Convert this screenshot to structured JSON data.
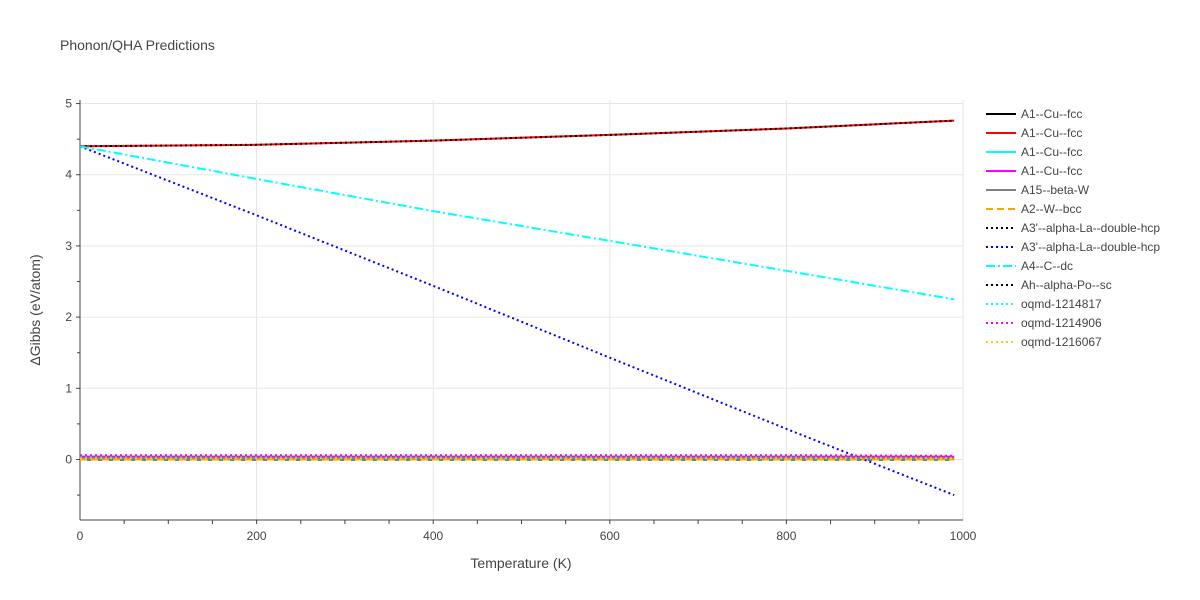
{
  "chart_data": {
    "type": "line",
    "title": "Phonon/QHA Predictions",
    "xlabel": "Temperature (K)",
    "ylabel": "ΔGibbs (eV/atom)",
    "xlim": [
      0,
      1000
    ],
    "ylim": [
      -0.85,
      5.05
    ],
    "x_ticks": [
      0,
      200,
      400,
      600,
      800,
      1000
    ],
    "y_ticks": [
      0,
      1,
      2,
      3,
      4,
      5
    ],
    "x_tick_labels": [
      "0",
      "200",
      "400",
      "600",
      "800",
      "1000"
    ],
    "y_tick_labels": [
      "0",
      "1",
      "2",
      "3",
      "4",
      "5"
    ],
    "grid": true,
    "legend_position": "right",
    "series": [
      {
        "name": "A1--Cu--fcc",
        "color": "#000000",
        "dash": "solid",
        "x": [
          0,
          200,
          400,
          600,
          800,
          990
        ],
        "y": [
          0,
          0,
          0,
          0,
          0,
          0
        ]
      },
      {
        "name": "A1--Cu--fcc",
        "color": "#ff0000",
        "dash": "solid",
        "x": [
          0,
          200,
          400,
          600,
          800,
          990
        ],
        "y": [
          4.4,
          4.42,
          4.48,
          4.56,
          4.65,
          4.76
        ]
      },
      {
        "name": "A1--Cu--fcc",
        "color": "#00ffff",
        "dash": "solid",
        "x": [
          0,
          200,
          400,
          600,
          800,
          990
        ],
        "y": [
          0.01,
          0.01,
          0.01,
          0.01,
          0.01,
          0.01
        ]
      },
      {
        "name": "A1--Cu--fcc",
        "color": "#ff00ff",
        "dash": "solid",
        "x": [
          0,
          200,
          400,
          600,
          800,
          990
        ],
        "y": [
          0.04,
          0.04,
          0.04,
          0.04,
          0.04,
          0.04
        ]
      },
      {
        "name": "A15--beta-W",
        "color": "#808080",
        "dash": "solid",
        "x": [
          0,
          200,
          400,
          600,
          800,
          990
        ],
        "y": [
          0.02,
          0.02,
          0.02,
          0.02,
          0.02,
          0.02
        ]
      },
      {
        "name": "A2--W--bcc",
        "color": "#ffa500",
        "dash": "dash",
        "x": [
          0,
          200,
          400,
          600,
          800,
          990
        ],
        "y": [
          0.0,
          0.0,
          0.0,
          0.0,
          0.0,
          0.0
        ]
      },
      {
        "name": "A3'--alpha-La--double-hcp",
        "color": "#000000",
        "dash": "dot",
        "x": [
          0,
          200,
          400,
          600,
          800,
          990
        ],
        "y": [
          4.4,
          4.42,
          4.48,
          4.56,
          4.65,
          4.76
        ]
      },
      {
        "name": "A3'--alpha-La--double-hcp",
        "color": "#0000ff",
        "dash": "dot",
        "x": [
          0,
          200,
          400,
          600,
          800,
          990
        ],
        "y": [
          4.4,
          3.43,
          2.44,
          1.43,
          0.43,
          -0.5
        ]
      },
      {
        "name": "A4--C--dc",
        "color": "#00ffff",
        "dash": "dashdot",
        "x": [
          0,
          200,
          400,
          600,
          800,
          990
        ],
        "y": [
          4.4,
          3.94,
          3.49,
          3.07,
          2.65,
          2.25
        ]
      },
      {
        "name": "Ah--alpha-Po--sc",
        "color": "#000000",
        "dash": "dot",
        "x": [
          0,
          200,
          400,
          600,
          800,
          990
        ],
        "y": [
          0.03,
          0.03,
          0.03,
          0.03,
          0.03,
          0.03
        ]
      },
      {
        "name": "oqmd-1214817",
        "color": "#00ffff",
        "dash": "dot",
        "x": [
          0,
          200,
          400,
          600,
          800,
          990
        ],
        "y": [
          0.05,
          0.05,
          0.05,
          0.05,
          0.05,
          0.05
        ]
      },
      {
        "name": "oqmd-1214906",
        "color": "#ff00ff",
        "dash": "dot",
        "x": [
          0,
          200,
          400,
          600,
          800,
          990
        ],
        "y": [
          0.06,
          0.06,
          0.06,
          0.06,
          0.06,
          0.05
        ]
      },
      {
        "name": "oqmd-1216067",
        "color": "#ffcc00",
        "dash": "dot",
        "x": [
          0,
          200,
          400,
          600,
          800,
          990
        ],
        "y": [
          0.02,
          0.02,
          0.02,
          0.02,
          0.02,
          0.02
        ]
      }
    ]
  }
}
